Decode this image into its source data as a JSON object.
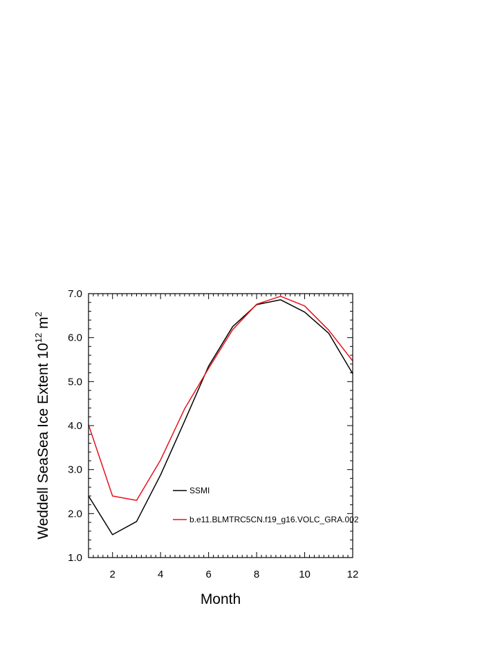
{
  "chart_data": {
    "type": "line",
    "xlabel": "Month",
    "ylabel": {
      "prefix": "Weddell SeaSea Ice Extent 10",
      "exponent": "12",
      "unit": " m",
      "unit_exponent": "2"
    },
    "xlim": [
      1,
      12
    ],
    "ylim": [
      1.0,
      7.0
    ],
    "xticks": [
      2,
      4,
      6,
      8,
      10,
      12
    ],
    "xtick_labels": [
      "2",
      "4",
      "6",
      "8",
      "10",
      "12"
    ],
    "yticks": [
      1.0,
      2.0,
      3.0,
      4.0,
      5.0,
      6.0,
      7.0
    ],
    "ytick_labels": [
      "1.0",
      "2.0",
      "3.0",
      "4.0",
      "5.0",
      "6.0",
      "7.0"
    ],
    "grid": false,
    "legend_position": "inside-bottom-center",
    "x": [
      1,
      2,
      3,
      4,
      5,
      6,
      7,
      8,
      9,
      10,
      11,
      12
    ],
    "series": [
      {
        "name": "SSMI",
        "color": "#000000",
        "values": [
          2.4,
          1.52,
          1.82,
          2.88,
          4.1,
          5.35,
          6.25,
          6.75,
          6.86,
          6.58,
          6.1,
          5.18
        ]
      },
      {
        "name": "b.e11.BLMTRC5CN.f19_g16.VOLC_GRA.002",
        "color": "#e8101a",
        "values": [
          4.02,
          2.4,
          2.3,
          3.22,
          4.38,
          5.3,
          6.18,
          6.76,
          6.94,
          6.72,
          6.17,
          5.47
        ]
      }
    ]
  }
}
